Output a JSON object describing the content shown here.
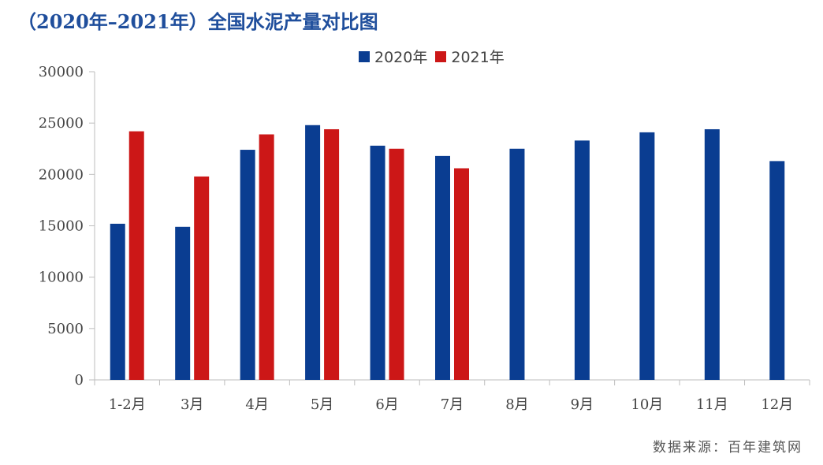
{
  "chart_data": {
    "type": "bar",
    "title": "（2020年–2021年）全国水泥产量对比图",
    "categories": [
      "1-2月",
      "3月",
      "4月",
      "5月",
      "6月",
      "7月",
      "8月",
      "9月",
      "10月",
      "11月",
      "12月"
    ],
    "series": [
      {
        "name": "2020年",
        "color": "#0a3d91",
        "values": [
          15200,
          14900,
          22400,
          24800,
          22800,
          21800,
          22500,
          23300,
          24100,
          24400,
          21300
        ]
      },
      {
        "name": "2021年",
        "color": "#cc1717",
        "values": [
          24200,
          19800,
          23900,
          24400,
          22500,
          20600,
          null,
          null,
          null,
          null,
          null
        ]
      }
    ],
    "ylim": [
      0,
      30000
    ],
    "yticks": [
      "0",
      "5000",
      "10000",
      "15000",
      "20000",
      "25000",
      "30000"
    ],
    "legend_position": "top-center",
    "grid": false
  },
  "source": "数据来源：百年建筑网"
}
